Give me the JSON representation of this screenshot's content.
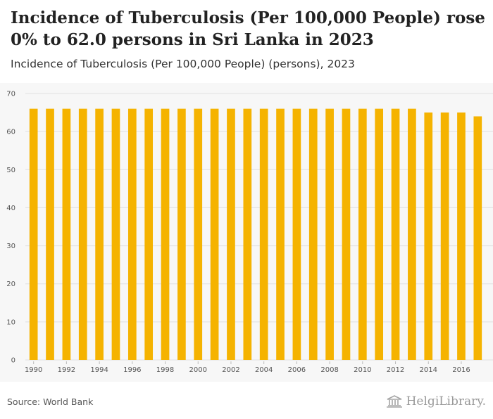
{
  "header": {
    "title": "Incidence of Tuberculosis (Per 100,000 People) rose 0% to 62.0 persons in Sri Lanka in 2023",
    "subtitle": "Incidence of Tuberculosis (Per 100,000 People) (persons), 2023"
  },
  "footer": {
    "source": "Source: World Bank",
    "brand": "HelgiLibrary."
  },
  "colors": {
    "bar": "#f5b300",
    "grid": "#e0e0e0",
    "tick_text": "#555555"
  },
  "chart_data": {
    "type": "bar",
    "title": "",
    "xlabel": "",
    "ylabel": "",
    "categories": [
      "1990",
      "1991",
      "1992",
      "1993",
      "1994",
      "1995",
      "1996",
      "1997",
      "1998",
      "1999",
      "2000",
      "2001",
      "2002",
      "2003",
      "2004",
      "2005",
      "2006",
      "2007",
      "2008",
      "2009",
      "2010",
      "2011",
      "2012",
      "2013",
      "2014",
      "2015",
      "2016",
      "2017"
    ],
    "x_tick_labels": [
      "1990",
      "1992",
      "1994",
      "1996",
      "1998",
      "2000",
      "2002",
      "2004",
      "2006",
      "2008",
      "2010",
      "2012",
      "2014",
      "2016"
    ],
    "series": [
      {
        "values": [
          66,
          66,
          66,
          66,
          66,
          66,
          66,
          66,
          66,
          66,
          66,
          66,
          66,
          66,
          66,
          66,
          66,
          66,
          66,
          66,
          66,
          66,
          66,
          66,
          65,
          65,
          65,
          64
        ]
      }
    ],
    "ylim": [
      0,
      70
    ],
    "y_ticks": [
      0,
      10,
      20,
      30,
      40,
      50,
      60,
      70
    ],
    "grid": true,
    "legend": "none"
  }
}
